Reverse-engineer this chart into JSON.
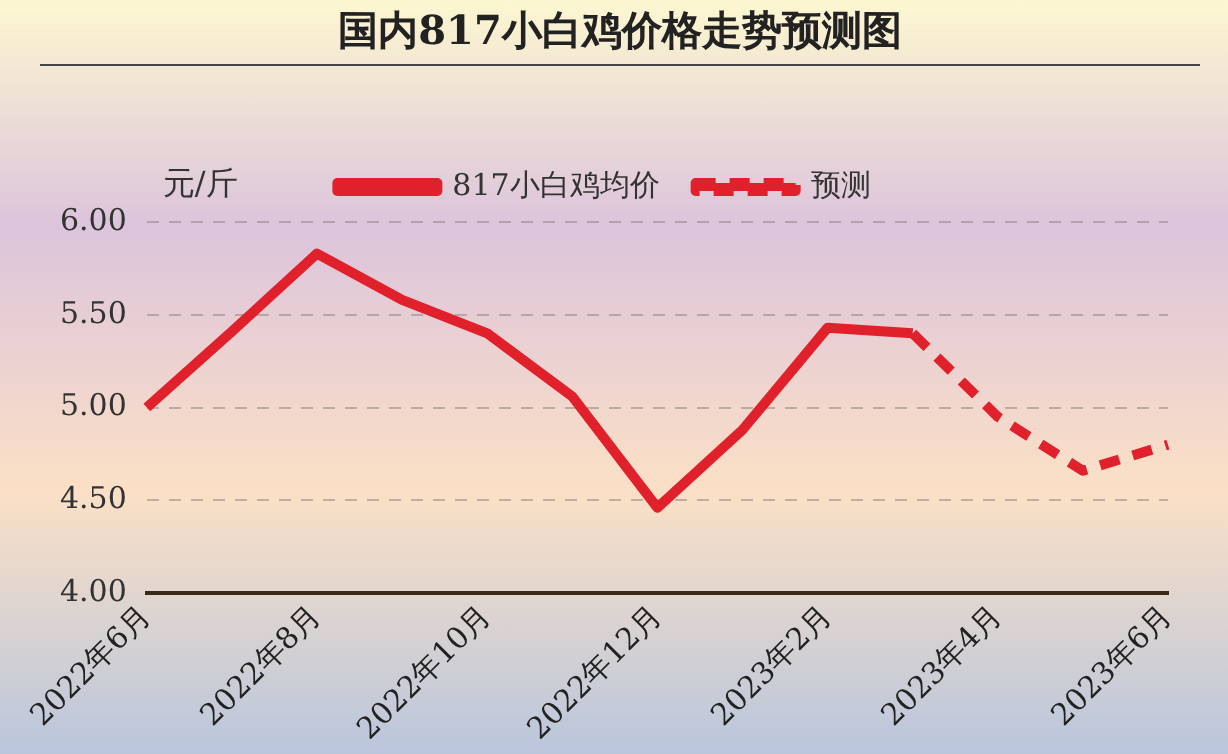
{
  "chart_data": {
    "type": "line",
    "title": "国内817小白鸡价格走势预测图",
    "ylabel": "元/斤",
    "categories": [
      "2022年6月",
      null,
      "2022年8月",
      null,
      "2022年10月",
      null,
      "2022年12月",
      null,
      "2023年2月",
      null,
      "2023年4月",
      null,
      "2023年6月"
    ],
    "series": [
      {
        "name": "817小白鸡均价",
        "color": "#e0202a",
        "line_style": "solid",
        "values": [
          5.0,
          5.41,
          5.83,
          5.58,
          5.4,
          5.06,
          4.46,
          4.88,
          5.43,
          5.4,
          null,
          null,
          null
        ]
      },
      {
        "name": "预测",
        "color": "#e0202a",
        "line_style": "dashed",
        "values": [
          null,
          null,
          null,
          null,
          null,
          null,
          null,
          null,
          null,
          5.4,
          4.95,
          4.66,
          4.8
        ]
      }
    ],
    "ylim": [
      4,
      6
    ],
    "yticks": [
      {
        "value": 4,
        "label": "4.00"
      },
      {
        "value": 4.5,
        "label": "4.50"
      },
      {
        "value": 5,
        "label": "5.00"
      },
      {
        "value": 5.5,
        "label": "5.50"
      },
      {
        "value": 6,
        "label": "6.00"
      }
    ],
    "grid": "y",
    "legend": "top",
    "marker": "none"
  }
}
